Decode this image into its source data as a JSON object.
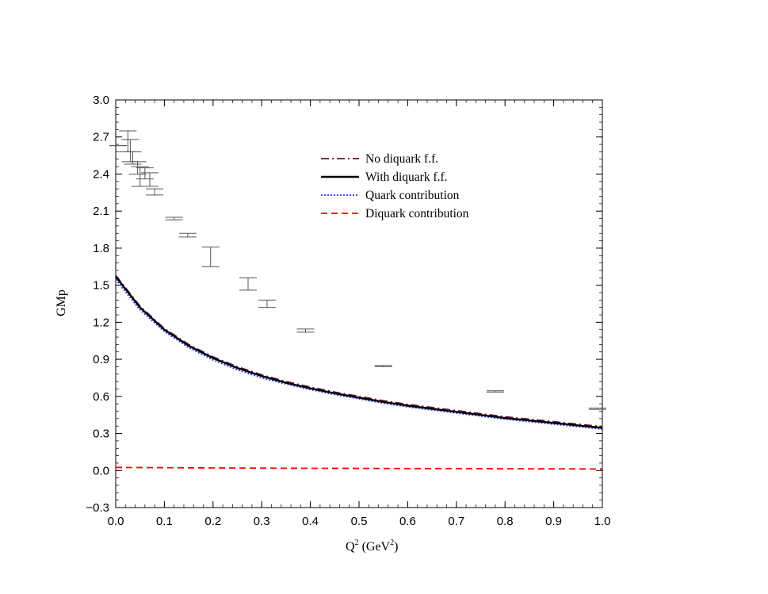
{
  "chart_data": {
    "type": "line",
    "xlabel": "Q",
    "xlabel_sup1": "2",
    "xlabel_mid": " (GeV",
    "xlabel_sup2": "2",
    "xlabel_end": ")",
    "ylabel": "GMp",
    "xlim": [
      0.0,
      1.0
    ],
    "ylim": [
      -0.3,
      3.0
    ],
    "x_ticks": [
      "0.0",
      "0.1",
      "0.2",
      "0.3",
      "0.4",
      "0.5",
      "0.6",
      "0.7",
      "0.8",
      "0.9",
      "1.0"
    ],
    "y_ticks": [
      "−0.3",
      "0.0",
      "0.3",
      "0.6",
      "0.9",
      "1.2",
      "1.5",
      "1.8",
      "2.1",
      "2.4",
      "2.7",
      "3.0"
    ],
    "legend_position": "top-right",
    "legend": [
      {
        "label": "No diquark f.f.",
        "color": "#6b0f3a",
        "style": "dashdot"
      },
      {
        "label": "With diquark f.f.",
        "color": "#000000",
        "style": "solid"
      },
      {
        "label": "Quark contribution",
        "color": "#1f3bff",
        "style": "dotted"
      },
      {
        "label": "Diquark contribution",
        "color": "#ff0000",
        "style": "dashed"
      }
    ],
    "series": [
      {
        "name": "No diquark f.f.",
        "x": [
          0.0,
          0.05,
          0.1,
          0.15,
          0.2,
          0.25,
          0.3,
          0.35,
          0.4,
          0.45,
          0.5,
          0.55,
          0.6,
          0.65,
          0.7,
          0.75,
          0.8,
          0.85,
          0.9,
          0.95,
          1.0
        ],
        "y": [
          1.58,
          1.33,
          1.15,
          1.02,
          0.92,
          0.84,
          0.775,
          0.72,
          0.675,
          0.635,
          0.6,
          0.565,
          0.535,
          0.51,
          0.485,
          0.46,
          0.435,
          0.415,
          0.395,
          0.375,
          0.355
        ]
      },
      {
        "name": "With diquark f.f.",
        "x": [
          0.0,
          0.05,
          0.1,
          0.15,
          0.2,
          0.25,
          0.3,
          0.35,
          0.4,
          0.45,
          0.5,
          0.55,
          0.6,
          0.65,
          0.7,
          0.75,
          0.8,
          0.85,
          0.9,
          0.95,
          1.0
        ],
        "y": [
          1.57,
          1.32,
          1.14,
          1.01,
          0.91,
          0.83,
          0.765,
          0.71,
          0.665,
          0.625,
          0.59,
          0.555,
          0.525,
          0.5,
          0.475,
          0.45,
          0.425,
          0.405,
          0.385,
          0.365,
          0.345
        ]
      },
      {
        "name": "Quark contribution",
        "x": [
          0.0,
          0.05,
          0.1,
          0.15,
          0.2,
          0.25,
          0.3,
          0.35,
          0.4,
          0.45,
          0.5,
          0.55,
          0.6,
          0.65,
          0.7,
          0.75,
          0.8,
          0.85,
          0.9,
          0.95,
          1.0
        ],
        "y": [
          1.545,
          1.3,
          1.125,
          0.995,
          0.895,
          0.815,
          0.75,
          0.7,
          0.655,
          0.615,
          0.58,
          0.545,
          0.515,
          0.49,
          0.465,
          0.44,
          0.415,
          0.395,
          0.375,
          0.355,
          0.335
        ]
      },
      {
        "name": "Diquark contribution",
        "x": [
          0.0,
          0.1,
          0.2,
          0.3,
          0.4,
          0.5,
          0.6,
          0.7,
          0.8,
          0.9,
          1.0
        ],
        "y": [
          0.025,
          0.023,
          0.021,
          0.019,
          0.018,
          0.017,
          0.016,
          0.015,
          0.014,
          0.013,
          0.012
        ]
      }
    ],
    "experimental_data": [
      {
        "x": 0.005,
        "lo": 2.63,
        "hi": 2.63
      },
      {
        "x": 0.025,
        "lo": 2.58,
        "hi": 2.75
      },
      {
        "x": 0.03,
        "lo": 2.5,
        "hi": 2.68
      },
      {
        "x": 0.035,
        "lo": 2.48,
        "hi": 2.58
      },
      {
        "x": 0.045,
        "lo": 2.4,
        "hi": 2.5
      },
      {
        "x": 0.05,
        "lo": 2.3,
        "hi": 2.46
      },
      {
        "x": 0.06,
        "lo": 2.36,
        "hi": 2.45
      },
      {
        "x": 0.07,
        "lo": 2.3,
        "hi": 2.41
      },
      {
        "x": 0.08,
        "lo": 2.23,
        "hi": 2.28
      },
      {
        "x": 0.12,
        "lo": 2.03,
        "hi": 2.05
      },
      {
        "x": 0.148,
        "lo": 1.89,
        "hi": 1.92
      },
      {
        "x": 0.195,
        "lo": 1.65,
        "hi": 1.81
      },
      {
        "x": 0.272,
        "lo": 1.46,
        "hi": 1.56
      },
      {
        "x": 0.311,
        "lo": 1.32,
        "hi": 1.38
      },
      {
        "x": 0.39,
        "lo": 1.12,
        "hi": 1.145
      },
      {
        "x": 0.55,
        "lo": 0.84,
        "hi": 0.85
      },
      {
        "x": 0.78,
        "lo": 0.635,
        "hi": 0.645
      },
      {
        "x": 0.99,
        "lo": 0.495,
        "hi": 0.505
      }
    ]
  }
}
